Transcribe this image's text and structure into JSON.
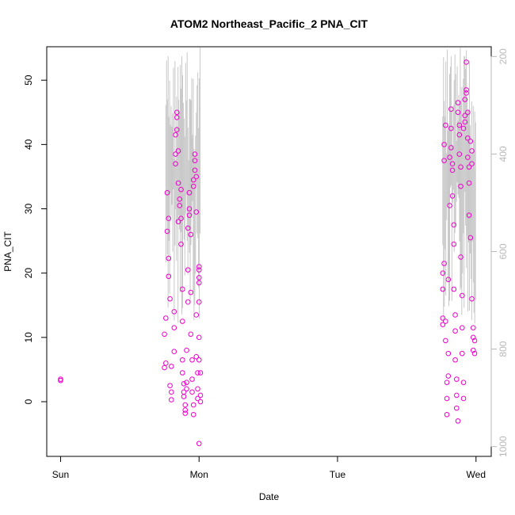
{
  "chart_data": {
    "type": "scatter",
    "title": "ATOM2 Northeast_Pacific_2 PNA_CIT",
    "xlabel": "Date",
    "ylabel": "PNA_CIT",
    "x_ticks": [
      "Sun",
      "Mon",
      "Tue",
      "Wed"
    ],
    "x_tick_positions_days": [
      0,
      1,
      2,
      3
    ],
    "xlim_days": [
      -0.1,
      3.11
    ],
    "ylim": [
      -8.5,
      55.2
    ],
    "y_ticks": [
      0,
      10,
      20,
      30,
      40,
      50
    ],
    "y2_label": "",
    "y2_ticks": [
      200,
      400,
      600,
      800,
      1000
    ],
    "y2_lim": [
      1020,
      180
    ],
    "y2_color": "#b8b8b8",
    "point_color": "#ee00cc",
    "line_color": "#c8c8c8",
    "grid": false,
    "legend": "none",
    "series": [
      {
        "points": [
          [
            0.0,
            3.5
          ],
          [
            0.0,
            3.3
          ],
          [
            0.75,
            10.5
          ],
          [
            0.75,
            5.3
          ],
          [
            0.76,
            6.0
          ],
          [
            0.76,
            13.0
          ],
          [
            0.77,
            26.5
          ],
          [
            0.77,
            32.5
          ],
          [
            0.78,
            28.5
          ],
          [
            0.78,
            22.3
          ],
          [
            0.78,
            19.5
          ],
          [
            0.79,
            16.0
          ],
          [
            0.79,
            2.5
          ],
          [
            0.8,
            1.5
          ],
          [
            0.8,
            0.3
          ],
          [
            0.8,
            5.5
          ],
          [
            0.82,
            7.8
          ],
          [
            0.82,
            11.5
          ],
          [
            0.82,
            14.0
          ],
          [
            0.83,
            37.0
          ],
          [
            0.83,
            38.5
          ],
          [
            0.83,
            41.5
          ],
          [
            0.84,
            42.3
          ],
          [
            0.84,
            44.2
          ],
          [
            0.84,
            45.0
          ],
          [
            0.85,
            39.0
          ],
          [
            0.85,
            34.0
          ],
          [
            0.85,
            28.0
          ],
          [
            0.86,
            30.5
          ],
          [
            0.86,
            31.5
          ],
          [
            0.87,
            33.0
          ],
          [
            0.87,
            28.5
          ],
          [
            0.87,
            24.5
          ],
          [
            0.88,
            17.5
          ],
          [
            0.88,
            12.5
          ],
          [
            0.88,
            6.5
          ],
          [
            0.88,
            4.5
          ],
          [
            0.89,
            2.8
          ],
          [
            0.89,
            1.5
          ],
          [
            0.89,
            0.8
          ],
          [
            0.9,
            -0.5
          ],
          [
            0.9,
            -1.3
          ],
          [
            0.9,
            -1.8
          ],
          [
            0.91,
            2.0
          ],
          [
            0.91,
            3.0
          ],
          [
            0.91,
            8.0
          ],
          [
            0.92,
            15.5
          ],
          [
            0.92,
            20.5
          ],
          [
            0.92,
            27.0
          ],
          [
            0.93,
            32.5
          ],
          [
            0.93,
            30.0
          ],
          [
            0.93,
            29.0
          ],
          [
            0.94,
            26.0
          ],
          [
            0.94,
            17.0
          ],
          [
            0.94,
            10.5
          ],
          [
            0.95,
            6.5
          ],
          [
            0.95,
            3.5
          ],
          [
            0.95,
            1.5
          ],
          [
            0.96,
            -0.5
          ],
          [
            0.96,
            -2.0
          ],
          [
            0.96,
            33.5
          ],
          [
            0.96,
            34.5
          ],
          [
            0.97,
            36.0
          ],
          [
            0.97,
            37.5
          ],
          [
            0.97,
            38.5
          ],
          [
            0.98,
            35.0
          ],
          [
            0.98,
            29.5
          ],
          [
            0.98,
            13.5
          ],
          [
            0.98,
            7.0
          ],
          [
            0.99,
            4.5
          ],
          [
            0.99,
            2.0
          ],
          [
            0.99,
            0.5
          ],
          [
            1.0,
            15.5
          ],
          [
            1.0,
            18.5
          ],
          [
            1.0,
            20.5
          ],
          [
            1.0,
            21.0
          ],
          [
            1.0,
            19.3
          ],
          [
            1.0,
            10.0
          ],
          [
            1.0,
            6.5
          ],
          [
            1.01,
            4.5
          ],
          [
            1.01,
            1.0
          ],
          [
            1.01,
            0.0
          ],
          [
            1.0,
            -6.5
          ],
          [
            2.76,
            12.0
          ],
          [
            2.76,
            13.0
          ],
          [
            2.76,
            17.5
          ],
          [
            2.76,
            20.0
          ],
          [
            2.77,
            21.5
          ],
          [
            2.77,
            37.5
          ],
          [
            2.77,
            40.0
          ],
          [
            2.78,
            43.0
          ],
          [
            2.78,
            12.5
          ],
          [
            2.78,
            9.5
          ],
          [
            2.79,
            3.0
          ],
          [
            2.79,
            0.5
          ],
          [
            2.79,
            -2.0
          ],
          [
            2.8,
            4.0
          ],
          [
            2.8,
            7.5
          ],
          [
            2.8,
            19.0
          ],
          [
            2.81,
            30.5
          ],
          [
            2.81,
            38.0
          ],
          [
            2.82,
            39.5
          ],
          [
            2.82,
            45.5
          ],
          [
            2.82,
            42.5
          ],
          [
            2.83,
            37.0
          ],
          [
            2.83,
            36.0
          ],
          [
            2.83,
            32.0
          ],
          [
            2.84,
            27.5
          ],
          [
            2.84,
            24.5
          ],
          [
            2.84,
            17.5
          ],
          [
            2.85,
            13.5
          ],
          [
            2.85,
            11.0
          ],
          [
            2.85,
            6.5
          ],
          [
            2.86,
            3.5
          ],
          [
            2.86,
            1.0
          ],
          [
            2.86,
            -1.0
          ],
          [
            2.87,
            -3.0
          ],
          [
            2.87,
            45.0
          ],
          [
            2.87,
            46.5
          ],
          [
            2.88,
            43.0
          ],
          [
            2.88,
            41.5
          ],
          [
            2.88,
            38.5
          ],
          [
            2.89,
            36.5
          ],
          [
            2.89,
            33.5
          ],
          [
            2.89,
            22.5
          ],
          [
            2.9,
            16.5
          ],
          [
            2.9,
            11.5
          ],
          [
            2.9,
            7.5
          ],
          [
            2.91,
            3.0
          ],
          [
            2.91,
            0.5
          ],
          [
            2.91,
            42.5
          ],
          [
            2.92,
            43.5
          ],
          [
            2.92,
            44.5
          ],
          [
            2.92,
            47.0
          ],
          [
            2.93,
            48.5
          ],
          [
            2.93,
            52.8
          ],
          [
            2.93,
            48.0
          ],
          [
            2.94,
            45.0
          ],
          [
            2.94,
            41.0
          ],
          [
            2.94,
            38.0
          ],
          [
            2.95,
            36.5
          ],
          [
            2.95,
            34.0
          ],
          [
            2.95,
            29.0
          ],
          [
            2.96,
            25.5
          ],
          [
            2.96,
            40.5
          ],
          [
            2.97,
            39.0
          ],
          [
            2.97,
            37.0
          ],
          [
            2.97,
            16.0
          ],
          [
            2.98,
            11.5
          ],
          [
            2.98,
            10.0
          ],
          [
            2.98,
            8.0
          ],
          [
            2.99,
            7.5
          ],
          [
            2.99,
            9.5
          ]
        ]
      }
    ]
  }
}
